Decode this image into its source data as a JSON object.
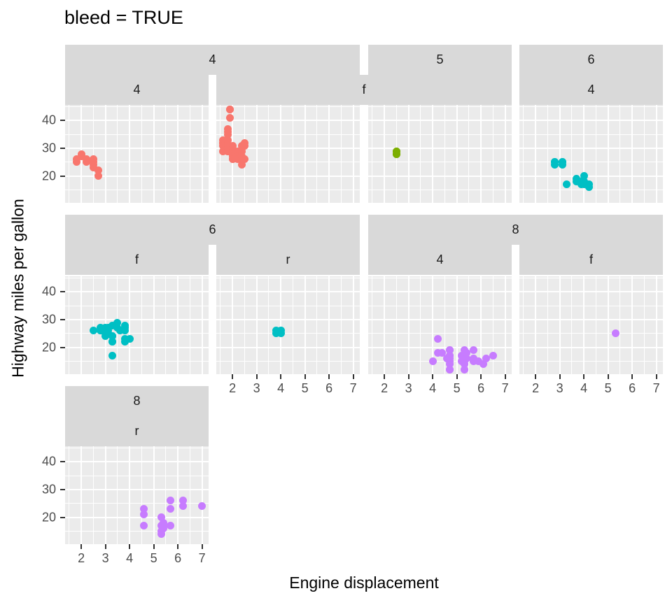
{
  "title": "bleed = TRUE",
  "axes": {
    "x_title": "Engine displacement",
    "y_title": "Highway miles per gallon",
    "x_tick_labels": [
      "2",
      "3",
      "4",
      "5",
      "6",
      "7"
    ],
    "y_tick_labels": [
      "20",
      "30",
      "40"
    ]
  },
  "theme": {
    "panel_bg": "#EBEBEB",
    "strip_bg": "#D9D9D9",
    "grid": "#FFFFFF",
    "axis_text": "#4D4D4D",
    "tick_mark": "#333333",
    "title_text": "#000000",
    "strip_text": "#1A1A1A"
  },
  "chart_data": {
    "type": "scatter",
    "title": "bleed = TRUE",
    "xlabel": "Engine displacement",
    "ylabel": "Highway miles per gallon",
    "x_ticks": [
      2,
      3,
      4,
      5,
      6,
      7
    ],
    "y_ticks": [
      20,
      30,
      40
    ],
    "x_minor": [
      1.5,
      2.5,
      3.5,
      4.5,
      5.5,
      6.5
    ],
    "y_minor": [
      15,
      25,
      35,
      45
    ],
    "xlim": [
      1.33,
      7.27
    ],
    "ylim": [
      10.4,
      45.6
    ],
    "grid": "major+minor",
    "legend_position": "none",
    "facet": {
      "outer_var": "cyl",
      "inner_var": "drv",
      "bleed": true
    },
    "palette": {
      "4": "#F8766D",
      "5": "#7CAE00",
      "6": "#00BFC4",
      "8": "#C77CFF"
    },
    "strips": {
      "rows": [
        {
          "outer": [
            {
              "label": "4",
              "cols": [
                0,
                1
              ]
            },
            {
              "label": "5",
              "cols": [
                2,
                2
              ]
            },
            {
              "label": "6",
              "cols": [
                3,
                3
              ]
            }
          ],
          "inner": [
            {
              "label": "4",
              "cols": [
                0,
                0
              ]
            },
            {
              "label": "f",
              "cols": [
                1,
                2
              ]
            },
            {
              "label": "4",
              "cols": [
                3,
                3
              ]
            }
          ]
        },
        {
          "outer": [
            {
              "label": "6",
              "cols": [
                0,
                1
              ]
            },
            {
              "label": "8",
              "cols": [
                2,
                3
              ]
            }
          ],
          "inner": [
            {
              "label": "f",
              "cols": [
                0,
                0
              ]
            },
            {
              "label": "r",
              "cols": [
                1,
                1
              ]
            },
            {
              "label": "4",
              "cols": [
                2,
                2
              ]
            },
            {
              "label": "f",
              "cols": [
                3,
                3
              ]
            }
          ]
        },
        {
          "outer": [
            {
              "label": "8",
              "cols": [
                0,
                0
              ]
            }
          ],
          "inner": [
            {
              "label": "r",
              "cols": [
                0,
                0
              ]
            }
          ]
        }
      ]
    },
    "panels": [
      {
        "id": "cyl4-drv4",
        "row": 0,
        "col": 0,
        "cyl": "4",
        "drv": "4",
        "color": "#F8766D",
        "points": [
          [
            1.8,
            26
          ],
          [
            1.8,
            25
          ],
          [
            2.0,
            28
          ],
          [
            2.0,
            27
          ],
          [
            2.2,
            26
          ],
          [
            2.2,
            25
          ],
          [
            2.5,
            26
          ],
          [
            2.5,
            25
          ],
          [
            2.5,
            24
          ],
          [
            2.5,
            23
          ],
          [
            2.7,
            22
          ],
          [
            2.7,
            20
          ]
        ]
      },
      {
        "id": "cyl4-drvf",
        "row": 0,
        "col": 1,
        "cyl": "4",
        "drv": "f",
        "color": "#F8766D",
        "points": [
          [
            1.6,
            33
          ],
          [
            1.6,
            32
          ],
          [
            1.6,
            32
          ],
          [
            1.6,
            31
          ],
          [
            1.6,
            29
          ],
          [
            1.8,
            37
          ],
          [
            1.8,
            36
          ],
          [
            1.8,
            35
          ],
          [
            1.8,
            33
          ],
          [
            1.8,
            31
          ],
          [
            1.8,
            30
          ],
          [
            1.8,
            29
          ],
          [
            1.8,
            29
          ],
          [
            1.9,
            44
          ],
          [
            1.9,
            44
          ],
          [
            1.9,
            41
          ],
          [
            2.0,
            31
          ],
          [
            2.0,
            30
          ],
          [
            2.0,
            29
          ],
          [
            2.0,
            29
          ],
          [
            2.0,
            28
          ],
          [
            2.0,
            27
          ],
          [
            2.0,
            26
          ],
          [
            2.0,
            26
          ],
          [
            2.2,
            29
          ],
          [
            2.2,
            27
          ],
          [
            2.2,
            26
          ],
          [
            2.4,
            31
          ],
          [
            2.4,
            30
          ],
          [
            2.4,
            29
          ],
          [
            2.4,
            27
          ],
          [
            2.4,
            26
          ],
          [
            2.4,
            24
          ],
          [
            2.5,
            32
          ],
          [
            2.5,
            31
          ],
          [
            2.5,
            26
          ]
        ]
      },
      {
        "id": "cyl5-drvf",
        "row": 0,
        "col": 2,
        "cyl": "5",
        "drv": "f",
        "color": "#7CAE00",
        "points": [
          [
            2.5,
            29
          ],
          [
            2.5,
            29
          ],
          [
            2.5,
            28
          ],
          [
            2.5,
            28
          ]
        ]
      },
      {
        "id": "cyl6-drv4",
        "row": 0,
        "col": 3,
        "cyl": "6",
        "drv": "4",
        "color": "#00BFC4",
        "points": [
          [
            2.8,
            25
          ],
          [
            2.8,
            25
          ],
          [
            2.8,
            24
          ],
          [
            3.1,
            25
          ],
          [
            3.1,
            25
          ],
          [
            3.1,
            24
          ],
          [
            3.3,
            17
          ],
          [
            3.7,
            19
          ],
          [
            3.7,
            18
          ],
          [
            3.9,
            18
          ],
          [
            3.9,
            17
          ],
          [
            4.0,
            20
          ],
          [
            4.0,
            18
          ],
          [
            4.0,
            17
          ],
          [
            4.2,
            17
          ],
          [
            4.2,
            16
          ]
        ]
      },
      {
        "id": "cyl6-drvf",
        "row": 1,
        "col": 0,
        "cyl": "6",
        "drv": "f",
        "color": "#00BFC4",
        "points": [
          [
            2.5,
            26
          ],
          [
            2.8,
            27
          ],
          [
            2.8,
            26
          ],
          [
            2.8,
            26
          ],
          [
            3.0,
            27
          ],
          [
            3.0,
            26
          ],
          [
            3.0,
            26
          ],
          [
            3.0,
            25
          ],
          [
            3.0,
            24
          ],
          [
            3.1,
            27
          ],
          [
            3.1,
            26
          ],
          [
            3.1,
            25
          ],
          [
            3.3,
            28
          ],
          [
            3.3,
            24
          ],
          [
            3.3,
            24
          ],
          [
            3.3,
            22
          ],
          [
            3.3,
            22
          ],
          [
            3.3,
            17
          ],
          [
            3.5,
            29
          ],
          [
            3.5,
            27
          ],
          [
            3.6,
            26
          ],
          [
            3.8,
            28
          ],
          [
            3.8,
            27
          ],
          [
            3.8,
            26
          ],
          [
            3.8,
            23
          ],
          [
            3.8,
            22
          ],
          [
            4.0,
            23
          ]
        ]
      },
      {
        "id": "cyl6-drvr",
        "row": 1,
        "col": 1,
        "cyl": "6",
        "drv": "r",
        "color": "#00BFC4",
        "points": [
          [
            3.8,
            26
          ],
          [
            3.8,
            25
          ],
          [
            4.0,
            26
          ],
          [
            4.0,
            25
          ]
        ]
      },
      {
        "id": "cyl8-drv4",
        "row": 1,
        "col": 2,
        "cyl": "8",
        "drv": "4",
        "color": "#C77CFF",
        "points": [
          [
            4.0,
            15
          ],
          [
            4.2,
            23
          ],
          [
            4.2,
            18
          ],
          [
            4.4,
            18
          ],
          [
            4.6,
            16
          ],
          [
            4.7,
            19
          ],
          [
            4.7,
            19
          ],
          [
            4.7,
            17
          ],
          [
            4.7,
            17
          ],
          [
            4.7,
            16
          ],
          [
            4.7,
            15
          ],
          [
            4.7,
            14
          ],
          [
            4.7,
            12
          ],
          [
            4.7,
            12
          ],
          [
            5.2,
            17
          ],
          [
            5.2,
            15
          ],
          [
            5.3,
            19
          ],
          [
            5.3,
            16
          ],
          [
            5.3,
            15
          ],
          [
            5.3,
            14
          ],
          [
            5.3,
            12
          ],
          [
            5.4,
            18
          ],
          [
            5.4,
            16
          ],
          [
            5.7,
            19
          ],
          [
            5.7,
            16
          ],
          [
            5.7,
            15
          ],
          [
            5.9,
            15
          ],
          [
            6.1,
            14
          ],
          [
            6.2,
            16
          ],
          [
            6.5,
            17
          ]
        ]
      },
      {
        "id": "cyl8-drvf",
        "row": 1,
        "col": 3,
        "cyl": "8",
        "drv": "f",
        "color": "#C77CFF",
        "points": [
          [
            5.3,
            25
          ]
        ]
      },
      {
        "id": "cyl8-drvr",
        "row": 2,
        "col": 0,
        "cyl": "8",
        "drv": "r",
        "color": "#C77CFF",
        "points": [
          [
            4.6,
            23
          ],
          [
            4.6,
            21
          ],
          [
            4.6,
            17
          ],
          [
            5.3,
            20
          ],
          [
            5.3,
            17
          ],
          [
            5.3,
            15
          ],
          [
            5.3,
            14
          ],
          [
            5.4,
            18
          ],
          [
            5.4,
            17
          ],
          [
            5.4,
            16
          ],
          [
            5.7,
            26
          ],
          [
            5.7,
            23
          ],
          [
            5.7,
            17
          ],
          [
            6.2,
            26
          ],
          [
            6.2,
            24
          ],
          [
            7.0,
            24
          ]
        ]
      }
    ],
    "x_axis_labeled_panels": [
      [
        1,
        1
      ],
      [
        1,
        2
      ],
      [
        1,
        3
      ],
      [
        2,
        0
      ]
    ],
    "y_axis_labeled_rows": [
      0,
      1,
      2
    ]
  }
}
